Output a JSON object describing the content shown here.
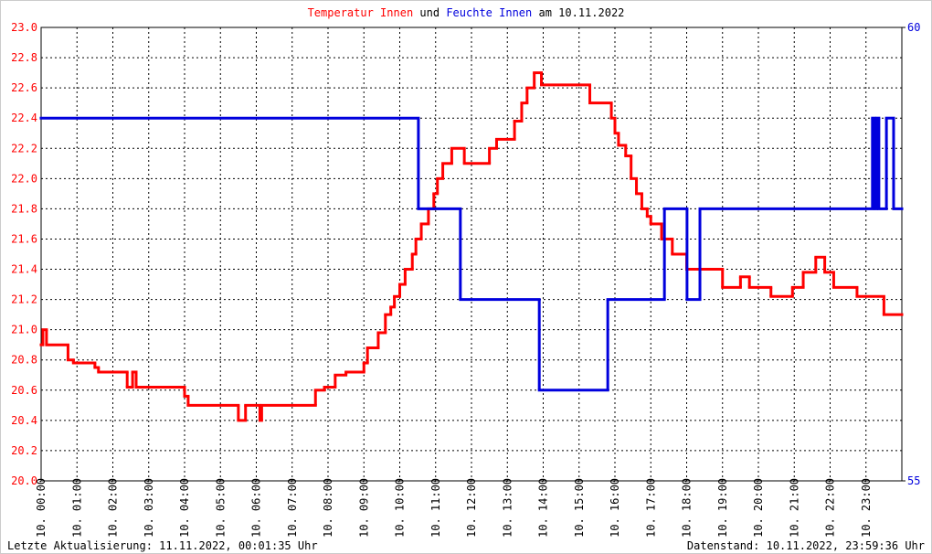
{
  "chart_data": {
    "type": "step-line",
    "title_join": "und",
    "title_suffix": "am 10.11.2022",
    "footer_left": "Letzte Aktualisierung: 11.11.2022, 00:01:35 Uhr",
    "footer_right": "Datenstand: 10.11.2022, 23:59:36 Uhr",
    "xlim": [
      0,
      24
    ],
    "xticks": [
      {
        "value": 0,
        "label": "10. 00:00"
      },
      {
        "value": 1,
        "label": "10. 01:00"
      },
      {
        "value": 2,
        "label": "10. 02:00"
      },
      {
        "value": 3,
        "label": "10. 03:00"
      },
      {
        "value": 4,
        "label": "10. 04:00"
      },
      {
        "value": 5,
        "label": "10. 05:00"
      },
      {
        "value": 6,
        "label": "10. 06:00"
      },
      {
        "value": 7,
        "label": "10. 07:00"
      },
      {
        "value": 8,
        "label": "10. 08:00"
      },
      {
        "value": 9,
        "label": "10. 09:00"
      },
      {
        "value": 10,
        "label": "10. 10:00"
      },
      {
        "value": 11,
        "label": "10. 11:00"
      },
      {
        "value": 12,
        "label": "10. 12:00"
      },
      {
        "value": 13,
        "label": "10. 13:00"
      },
      {
        "value": 14,
        "label": "10. 14:00"
      },
      {
        "value": 15,
        "label": "10. 15:00"
      },
      {
        "value": 16,
        "label": "10. 16:00"
      },
      {
        "value": 17,
        "label": "10. 17:00"
      },
      {
        "value": 18,
        "label": "10. 18:00"
      },
      {
        "value": 19,
        "label": "10. 19:00"
      },
      {
        "value": 20,
        "label": "10. 20:00"
      },
      {
        "value": 21,
        "label": "10. 21:00"
      },
      {
        "value": 22,
        "label": "10. 22:00"
      },
      {
        "value": 23,
        "label": "10. 23:00"
      }
    ],
    "ylim": [
      20,
      23
    ],
    "yticks": [
      {
        "value": 20,
        "label": "20.0"
      },
      20.2,
      20.4,
      20.6,
      20.8,
      {
        "value": 21,
        "label": "21.0"
      },
      21.2,
      21.4,
      21.6,
      21.8,
      {
        "value": 22,
        "label": "22.0"
      },
      22.2,
      22.4,
      22.6,
      22.8,
      {
        "value": 23,
        "label": "23.0"
      }
    ],
    "y2lim": [
      55,
      60
    ],
    "y2ticks": [
      55,
      60
    ],
    "grid": true,
    "series": [
      {
        "name": "Temperatur Innen",
        "color": "#ff0000",
        "x": [
          0,
          0.05,
          0.15,
          0.75,
          0.9,
          1.5,
          1.6,
          2.4,
          2.55,
          2.65,
          4.0,
          4.1,
          5.5,
          5.7,
          6.1,
          6.15,
          7.65,
          7.9,
          8.2,
          8.5,
          9.0,
          9.1,
          9.4,
          9.6,
          9.75,
          9.85,
          10.0,
          10.15,
          10.35,
          10.45,
          10.6,
          10.8,
          10.95,
          11.05,
          11.2,
          11.45,
          11.8,
          12.5,
          12.7,
          13.2,
          13.4,
          13.55,
          13.75,
          13.95,
          15.3,
          15.9,
          16.0,
          16.1,
          16.3,
          16.45,
          16.6,
          16.75,
          16.9,
          17.0,
          17.3,
          17.6,
          18.0,
          19.0,
          19.5,
          19.75,
          20.35,
          20.95,
          21.25,
          21.6,
          21.85,
          22.1,
          22.75,
          23.5,
          24
        ],
        "values": [
          20.9,
          21.0,
          20.9,
          20.8,
          20.78,
          20.75,
          20.72,
          20.62,
          20.72,
          20.62,
          20.56,
          20.5,
          20.4,
          20.5,
          20.4,
          20.5,
          20.6,
          20.62,
          20.7,
          20.72,
          20.78,
          20.88,
          20.98,
          21.1,
          21.15,
          21.22,
          21.3,
          21.4,
          21.5,
          21.6,
          21.7,
          21.8,
          21.9,
          22.0,
          22.1,
          22.2,
          22.1,
          22.2,
          22.26,
          22.38,
          22.5,
          22.6,
          22.7,
          22.62,
          22.5,
          22.4,
          22.3,
          22.22,
          22.15,
          22.0,
          21.9,
          21.8,
          21.75,
          21.7,
          21.6,
          21.5,
          21.4,
          21.28,
          21.35,
          21.28,
          21.22,
          21.28,
          21.38,
          21.48,
          21.38,
          21.28,
          21.22,
          21.1,
          21.1
        ]
      },
      {
        "name": "Feuchte Innen",
        "color": "#0000dd",
        "axis": "y2",
        "x": [
          0,
          10.52,
          11.69,
          13.89,
          15.8,
          17.38,
          18.01,
          18.37,
          23.18,
          23.24,
          23.3,
          23.36,
          23.57,
          23.77,
          24
        ],
        "values": [
          59,
          58,
          57,
          56,
          57,
          58,
          57,
          58,
          59,
          58,
          59,
          58,
          59,
          58,
          58
        ]
      }
    ]
  }
}
